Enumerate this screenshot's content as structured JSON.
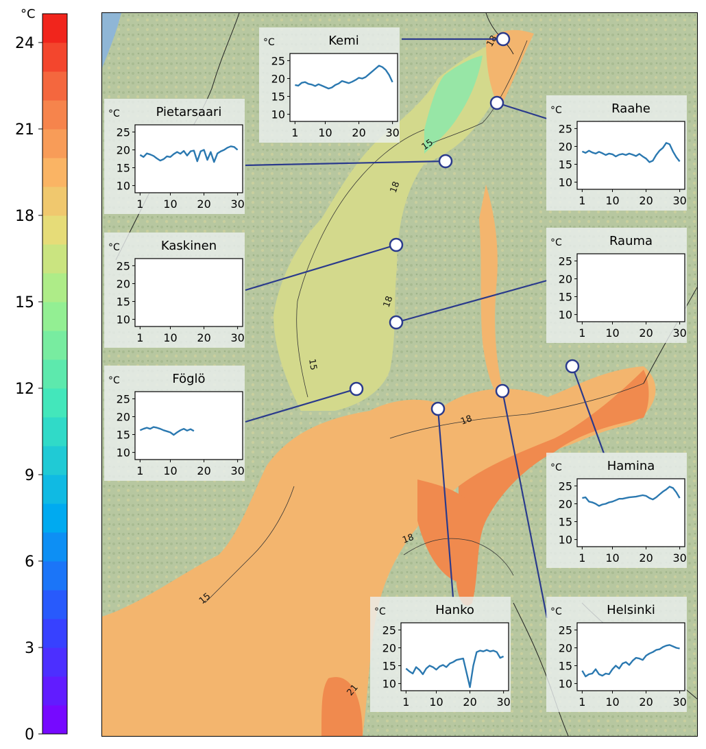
{
  "colorbar": {
    "unit": "°C",
    "min": 0,
    "max": 25,
    "ticks": [
      "24",
      "21",
      "18",
      "15",
      "12",
      "9",
      "6",
      "3",
      "0"
    ],
    "tick_values": [
      24,
      21,
      18,
      15,
      12,
      9,
      6,
      3,
      0
    ]
  },
  "map": {
    "contour_labels": [
      "18",
      "15",
      "18",
      "18",
      "15",
      "18",
      "18",
      "15",
      "21"
    ]
  },
  "insets": [
    {
      "name": "Kemi",
      "unit": "°C",
      "yticks": [
        "25",
        "20",
        "15",
        "10"
      ],
      "xticks": [
        "1",
        "10",
        "20",
        "30"
      ],
      "values": [
        18.2,
        18.0,
        18.8,
        19.0,
        18.5,
        18.3,
        17.9,
        18.4,
        18.0,
        17.6,
        17.2,
        17.5,
        18.2,
        18.6,
        19.3,
        19.0,
        18.7,
        19.1,
        19.6,
        20.2,
        20.0,
        20.4,
        21.2,
        22.0,
        22.8,
        23.6,
        23.2,
        22.4,
        21.0,
        19.0
      ]
    },
    {
      "name": "Pietarsaari",
      "unit": "°C",
      "yticks": [
        "25",
        "20",
        "15",
        "10"
      ],
      "xticks": [
        "1",
        "10",
        "20",
        "30"
      ],
      "values": [
        18.6,
        18.0,
        19.0,
        18.7,
        18.3,
        17.6,
        17.0,
        17.4,
        18.2,
        18.0,
        18.8,
        19.4,
        18.9,
        19.7,
        18.4,
        19.6,
        19.8,
        16.8,
        19.6,
        20.0,
        17.2,
        19.4,
        16.6,
        19.0,
        19.6,
        20.0,
        20.6,
        21.0,
        20.8,
        20.0
      ]
    },
    {
      "name": "Raahe",
      "unit": "°C",
      "yticks": [
        "25",
        "20",
        "15",
        "10"
      ],
      "xticks": [
        "1",
        "10",
        "20",
        "30"
      ],
      "values": [
        18.6,
        18.2,
        18.8,
        18.3,
        18.0,
        18.5,
        18.1,
        17.6,
        18.0,
        17.8,
        17.2,
        17.7,
        17.9,
        17.6,
        18.0,
        17.7,
        17.3,
        17.9,
        17.2,
        16.6,
        15.6,
        16.0,
        17.6,
        18.8,
        19.6,
        21.0,
        20.6,
        18.6,
        17.0,
        15.8
      ]
    },
    {
      "name": "Kaskinen",
      "unit": "°C",
      "yticks": [
        "25",
        "20",
        "15",
        "10"
      ],
      "xticks": [
        "1",
        "10",
        "20",
        "30"
      ],
      "values": []
    },
    {
      "name": "Rauma",
      "unit": "°C",
      "yticks": [
        "25",
        "20",
        "15",
        "10"
      ],
      "xticks": [
        "1",
        "10",
        "20",
        "30"
      ],
      "values": []
    },
    {
      "name": "Föglö",
      "unit": "°C",
      "yticks": [
        "25",
        "20",
        "15",
        "10"
      ],
      "xticks": [
        "1",
        "10",
        "20",
        "30"
      ],
      "values": [
        16.2,
        16.6,
        16.9,
        16.6,
        17.1,
        16.9,
        16.6,
        16.2,
        15.9,
        15.6,
        14.9,
        15.6,
        16.2,
        16.6,
        16.1,
        16.5,
        16.0
      ]
    },
    {
      "name": "Hamina",
      "unit": "°C",
      "yticks": [
        "25",
        "20",
        "15",
        "10"
      ],
      "xticks": [
        "1",
        "10",
        "20",
        "30"
      ],
      "values": [
        21.6,
        21.8,
        20.6,
        20.4,
        20.0,
        19.4,
        19.8,
        20.0,
        20.4,
        20.6,
        21.0,
        21.4,
        21.4,
        21.6,
        21.8,
        21.9,
        22.0,
        22.2,
        22.4,
        22.2,
        21.6,
        21.2,
        21.8,
        22.6,
        23.4,
        24.0,
        24.8,
        24.4,
        23.2,
        21.6
      ]
    },
    {
      "name": "Hanko",
      "unit": "°C",
      "yticks": [
        "25",
        "20",
        "15",
        "10"
      ],
      "xticks": [
        "1",
        "10",
        "20",
        "30"
      ],
      "values": [
        14.2,
        13.4,
        12.8,
        14.6,
        13.8,
        12.6,
        14.2,
        15.0,
        14.6,
        13.9,
        14.8,
        15.2,
        14.6,
        15.6,
        16.0,
        16.6,
        16.8,
        17.0,
        13.0,
        9.0,
        15.0,
        18.8,
        19.2,
        19.0,
        19.4,
        19.0,
        19.2,
        18.8,
        17.2,
        17.6
      ]
    },
    {
      "name": "Helsinki",
      "unit": "°C",
      "yticks": [
        "25",
        "20",
        "15",
        "10"
      ],
      "xticks": [
        "1",
        "10",
        "20",
        "30"
      ],
      "values": [
        13.6,
        12.0,
        12.6,
        12.8,
        14.0,
        12.6,
        12.2,
        12.8,
        12.6,
        14.0,
        15.0,
        14.2,
        15.6,
        16.0,
        15.2,
        16.4,
        17.2,
        17.0,
        16.6,
        17.8,
        18.4,
        18.8,
        19.4,
        19.6,
        20.2,
        20.6,
        20.8,
        20.4,
        20.0,
        19.8
      ]
    }
  ]
}
